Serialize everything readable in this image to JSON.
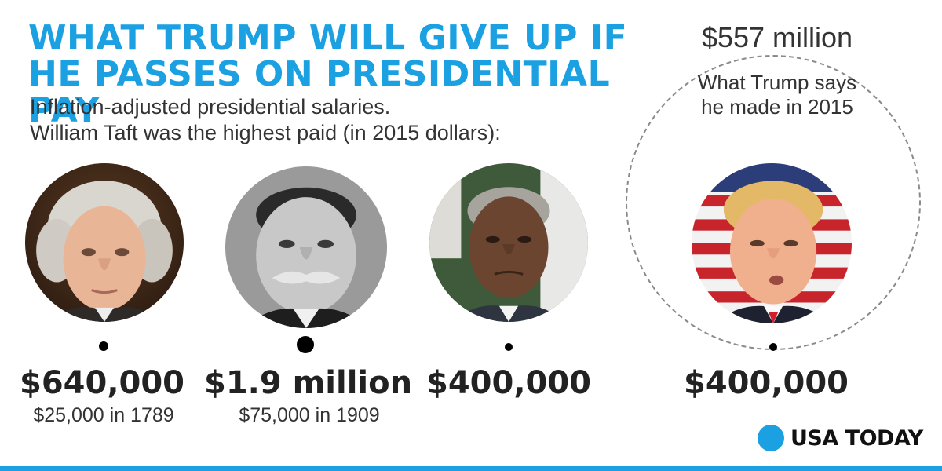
{
  "title": {
    "line1": "WHAT TRUMP WILL GIVE UP IF",
    "line2": "HE PASSES ON PRESIDENTIAL PAY"
  },
  "subtitle": {
    "line1": "Inflation-adjusted presidential salaries.",
    "line2": "William Taft was the highest paid (in 2015 dollars):"
  },
  "presidents": [
    {
      "adjusted_salary": "$640,000",
      "nominal_salary": "$25,000 in 1789"
    },
    {
      "adjusted_salary": "$1.9 million",
      "nominal_salary": "$75,000 in 1909"
    },
    {
      "adjusted_salary": "$400,000"
    },
    {
      "adjusted_salary": "$400,000"
    }
  ],
  "trump_earnings": {
    "amount": "$557 million",
    "note_line1": "What Trump says",
    "note_line2": "he made in 2015"
  },
  "brand": {
    "name": "USA TODAY",
    "accent_color": "#1ba1e2"
  },
  "icons": {
    "logo": "blue-dot-logo-icon"
  }
}
